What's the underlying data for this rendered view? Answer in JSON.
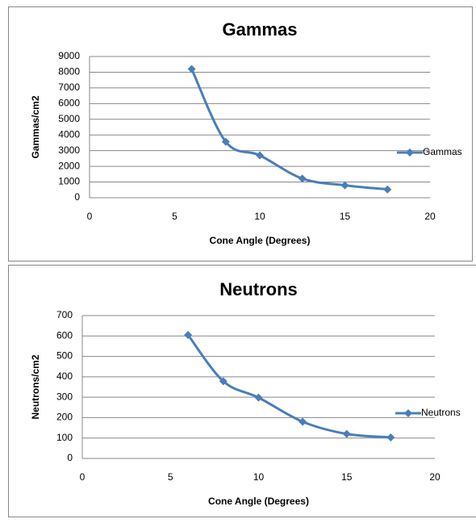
{
  "chart_data": [
    {
      "type": "line",
      "title": "Gammas",
      "x_label": "Cone Angle (Degrees)",
      "y_label": "Gammas/cm2",
      "x": [
        6,
        8,
        10,
        12.5,
        15,
        17.5
      ],
      "series": [
        {
          "name": "Gammas",
          "color": "#4a7ebb",
          "values": [
            8200,
            3570,
            2700,
            1220,
            790,
            530
          ]
        }
      ],
      "xlim": [
        0,
        20
      ],
      "xticks": [
        0,
        5,
        10,
        15,
        20
      ],
      "ylim": [
        0,
        9000
      ],
      "yticks": [
        0,
        1000,
        2000,
        3000,
        4000,
        5000,
        6000,
        7000,
        8000,
        9000
      ],
      "grid": true,
      "legend": "right",
      "smooth": true
    },
    {
      "type": "line",
      "title": "Neutrons",
      "x_label": "Cone Angle (Degrees)",
      "y_label": "Neutrons/cm2",
      "x": [
        6,
        8,
        10,
        12.5,
        15,
        17.5
      ],
      "series": [
        {
          "name": "Neutrons",
          "color": "#4a7ebb",
          "values": [
            605,
            378,
            298,
            180,
            120,
            103
          ]
        }
      ],
      "xlim": [
        0,
        20
      ],
      "xticks": [
        0,
        5,
        10,
        15,
        20
      ],
      "ylim": [
        0,
        700
      ],
      "yticks": [
        0,
        100,
        200,
        300,
        400,
        500,
        600,
        700
      ],
      "grid": true,
      "legend": "right",
      "smooth": true
    }
  ]
}
